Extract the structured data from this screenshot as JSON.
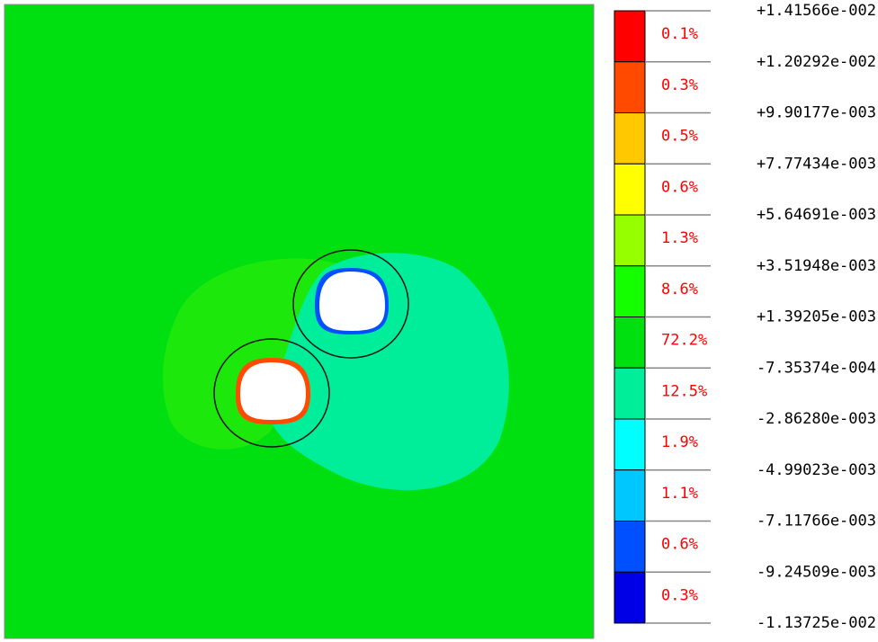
{
  "legend": {
    "levels": [
      "+1.41566e-002",
      "+1.20292e-002",
      "+9.90177e-003",
      "+7.77434e-003",
      "+5.64691e-003",
      "+3.51948e-003",
      "+1.39205e-003",
      "-7.35374e-004",
      "-2.86280e-003",
      "-4.99023e-003",
      "-7.11766e-003",
      "-9.24509e-003",
      "-1.13725e-002"
    ],
    "bands": [
      {
        "color": "#ff0000",
        "percent": "0.1%"
      },
      {
        "color": "#ff4a00",
        "percent": "0.3%"
      },
      {
        "color": "#ffc800",
        "percent": "0.5%"
      },
      {
        "color": "#ffff00",
        "percent": "0.6%"
      },
      {
        "color": "#96ff00",
        "percent": "1.3%"
      },
      {
        "color": "#14ff00",
        "percent": "8.6%"
      },
      {
        "color": "#00e010",
        "percent": "72.2%"
      },
      {
        "color": "#00ee9a",
        "percent": "12.5%"
      },
      {
        "color": "#00ffff",
        "percent": "1.9%"
      },
      {
        "color": "#00c8ff",
        "percent": "1.1%"
      },
      {
        "color": "#0050ff",
        "percent": "0.6%"
      },
      {
        "color": "#0000e6",
        "percent": "0.3%"
      }
    ]
  }
}
